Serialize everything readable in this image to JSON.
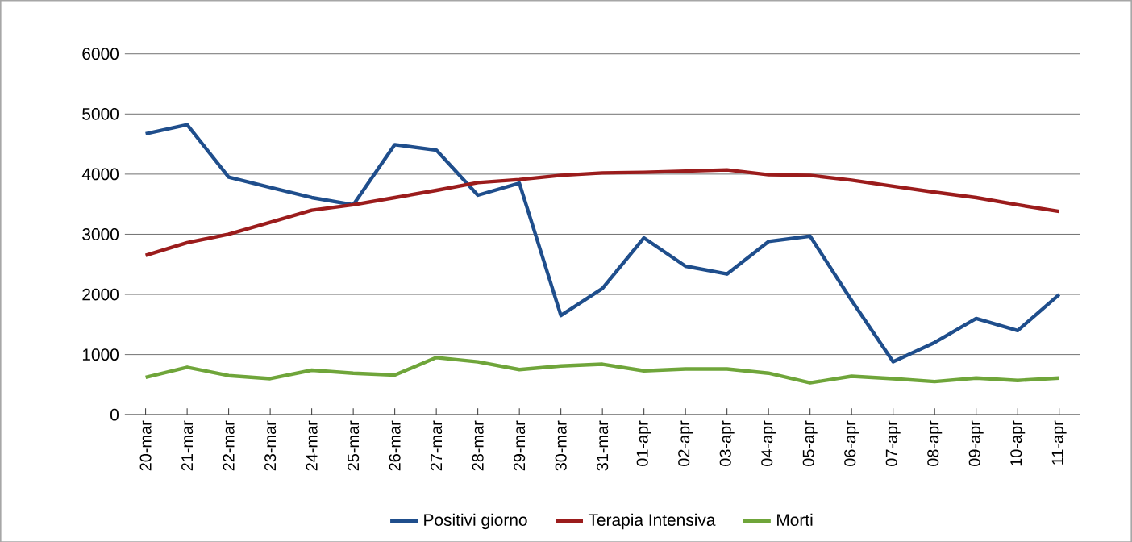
{
  "chart_data": {
    "type": "line",
    "categories": [
      "20-mar",
      "21-mar",
      "22-mar",
      "23-mar",
      "24-mar",
      "25-mar",
      "26-mar",
      "27-mar",
      "28-mar",
      "29-mar",
      "30-mar",
      "31-mar",
      "01-apr",
      "02-apr",
      "03-apr",
      "04-apr",
      "05-apr",
      "06-apr",
      "07-apr",
      "08-apr",
      "09-apr",
      "10-apr",
      "11-apr"
    ],
    "series": [
      {
        "name": "Positivi giorno",
        "color": "#1f4e8c",
        "values": [
          4670,
          4820,
          3950,
          3780,
          3610,
          3490,
          4490,
          4400,
          3650,
          3850,
          1650,
          2100,
          2940,
          2470,
          2340,
          2880,
          2970,
          1900,
          880,
          1200,
          1600,
          1400,
          2000
        ]
      },
      {
        "name": "Terapia Intensiva",
        "color": "#9b1c1c",
        "values": [
          2650,
          2860,
          3000,
          3200,
          3400,
          3490,
          3610,
          3730,
          3860,
          3910,
          3980,
          4020,
          4030,
          4050,
          4070,
          3990,
          3980,
          3900,
          3800,
          3700,
          3610,
          3490,
          3380
        ]
      },
      {
        "name": "Morti",
        "color": "#6fa53a",
        "values": [
          620,
          790,
          650,
          600,
          740,
          690,
          660,
          950,
          880,
          750,
          810,
          840,
          730,
          760,
          760,
          690,
          530,
          640,
          600,
          550,
          610,
          570,
          610
        ]
      }
    ],
    "ylim": [
      0,
      6000
    ],
    "yticks": [
      0,
      1000,
      2000,
      3000,
      4000,
      5000,
      6000
    ],
    "grid": "y",
    "legend": "bottom",
    "marker": "none",
    "line_style": "solid"
  }
}
